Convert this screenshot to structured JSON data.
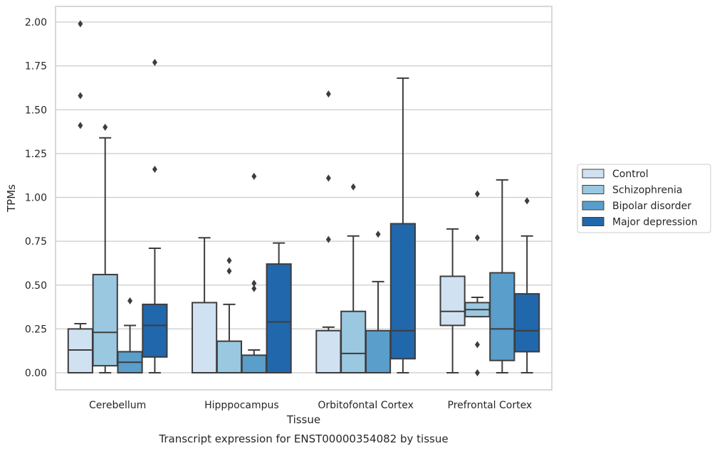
{
  "chart_data": {
    "type": "box",
    "title": "",
    "caption": "Transcript expression for ENST00000354082 by tissue",
    "xlabel": "Tissue",
    "ylabel": "TPMs",
    "ylim": [
      -0.1,
      2.1
    ],
    "yticks": [
      "0.00",
      "0.25",
      "0.50",
      "0.75",
      "1.00",
      "1.25",
      "1.50",
      "1.75",
      "2.00"
    ],
    "grid": "horizontal",
    "legend_position": "right",
    "categories": [
      "Cerebellum",
      "Hipppocampus",
      "Orbitofontal Cortex",
      "Prefrontal Cortex"
    ],
    "series": [
      {
        "name": "Control",
        "color": "#d0e1f2",
        "boxes": [
          {
            "q1": 0.0,
            "median": 0.13,
            "q3": 0.25,
            "whisker_low": 0.0,
            "whisker_high": 0.28,
            "outliers": [
              1.41,
              1.58,
              1.99
            ]
          },
          {
            "q1": 0.0,
            "median": 0.0,
            "q3": 0.4,
            "whisker_low": 0.0,
            "whisker_high": 0.77,
            "outliers": []
          },
          {
            "q1": 0.0,
            "median": 0.0,
            "q3": 0.24,
            "whisker_low": 0.0,
            "whisker_high": 0.26,
            "outliers": [
              0.76,
              1.11,
              1.59
            ]
          },
          {
            "q1": 0.27,
            "median": 0.35,
            "q3": 0.55,
            "whisker_low": 0.0,
            "whisker_high": 0.82,
            "outliers": []
          }
        ]
      },
      {
        "name": "Schizophrenia",
        "color": "#9ac8e0",
        "boxes": [
          {
            "q1": 0.04,
            "median": 0.23,
            "q3": 0.56,
            "whisker_low": 0.0,
            "whisker_high": 1.34,
            "outliers": [
              1.4
            ]
          },
          {
            "q1": 0.0,
            "median": 0.0,
            "q3": 0.18,
            "whisker_low": 0.0,
            "whisker_high": 0.39,
            "outliers": [
              0.58,
              0.64
            ]
          },
          {
            "q1": 0.0,
            "median": 0.11,
            "q3": 0.35,
            "whisker_low": 0.0,
            "whisker_high": 0.78,
            "outliers": [
              1.06
            ]
          },
          {
            "q1": 0.32,
            "median": 0.36,
            "q3": 0.4,
            "whisker_low": 0.32,
            "whisker_high": 0.43,
            "outliers": [
              0.0,
              0.16,
              0.77,
              1.02
            ]
          }
        ]
      },
      {
        "name": "Bipolar disorder",
        "color": "#5a9ecb",
        "boxes": [
          {
            "q1": 0.0,
            "median": 0.06,
            "q3": 0.12,
            "whisker_low": 0.0,
            "whisker_high": 0.27,
            "outliers": [
              0.41
            ]
          },
          {
            "q1": 0.0,
            "median": 0.0,
            "q3": 0.1,
            "whisker_low": 0.0,
            "whisker_high": 0.13,
            "outliers": [
              0.48,
              0.51,
              1.12
            ]
          },
          {
            "q1": 0.0,
            "median": 0.0,
            "q3": 0.24,
            "whisker_low": 0.0,
            "whisker_high": 0.52,
            "outliers": [
              0.79
            ]
          },
          {
            "q1": 0.07,
            "median": 0.25,
            "q3": 0.57,
            "whisker_low": 0.0,
            "whisker_high": 1.1,
            "outliers": []
          }
        ]
      },
      {
        "name": "Major depression",
        "color": "#2167ac",
        "boxes": [
          {
            "q1": 0.09,
            "median": 0.27,
            "q3": 0.39,
            "whisker_low": 0.0,
            "whisker_high": 0.71,
            "outliers": [
              1.16,
              1.77
            ]
          },
          {
            "q1": 0.0,
            "median": 0.29,
            "q3": 0.62,
            "whisker_low": 0.0,
            "whisker_high": 0.74,
            "outliers": []
          },
          {
            "q1": 0.08,
            "median": 0.24,
            "q3": 0.85,
            "whisker_low": 0.0,
            "whisker_high": 1.68,
            "outliers": []
          },
          {
            "q1": 0.12,
            "median": 0.24,
            "q3": 0.45,
            "whisker_low": 0.0,
            "whisker_high": 0.78,
            "outliers": [
              0.98
            ]
          }
        ]
      }
    ]
  }
}
